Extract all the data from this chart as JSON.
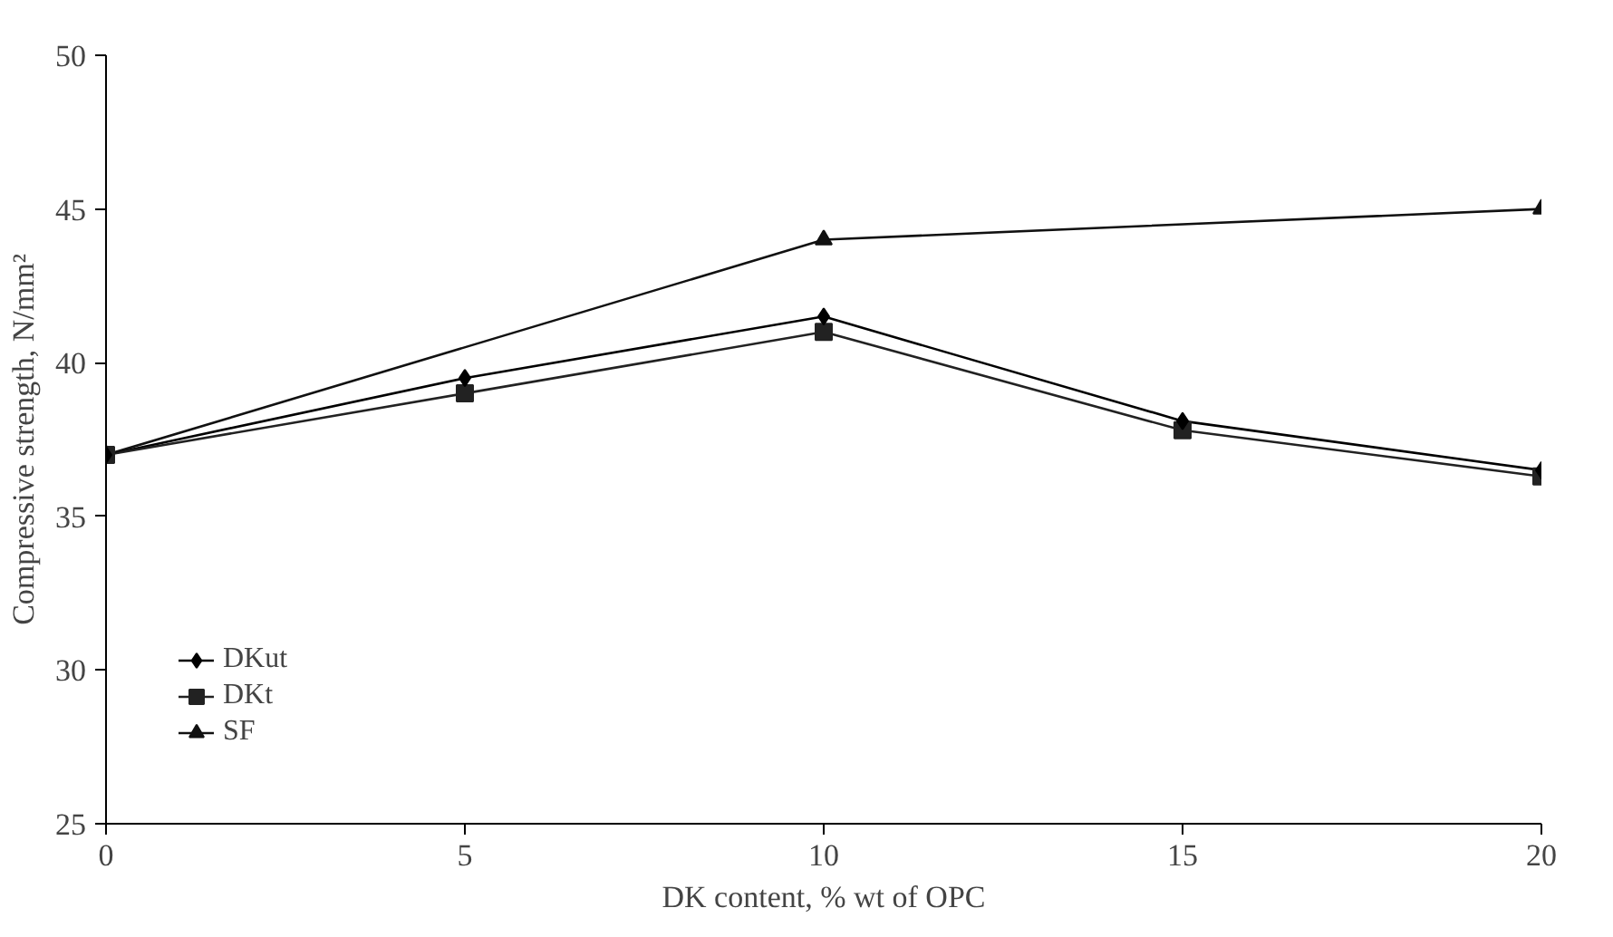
{
  "chart_data": {
    "type": "line",
    "xlabel": "DK content, % wt of OPC",
    "ylabel": "Compressive strength, N/mm²",
    "x": [
      0,
      5,
      10,
      15,
      20
    ],
    "series": [
      {
        "name": "DKut",
        "color": "#000000",
        "marker": "diamond",
        "values": [
          37,
          39.5,
          41.5,
          38.1,
          36.5
        ]
      },
      {
        "name": "DKt",
        "color": "#222222",
        "marker": "square",
        "values": [
          37,
          39,
          41,
          37.8,
          36.3
        ]
      },
      {
        "name": "SF",
        "color": "#111111",
        "marker": "triangle",
        "x": [
          0,
          10,
          20
        ],
        "values": [
          37,
          44,
          45
        ]
      }
    ],
    "xlim": [
      0,
      20
    ],
    "xticks": [
      0,
      5,
      10,
      15,
      20
    ],
    "ylim": [
      25,
      50
    ],
    "yticks": [
      25,
      30,
      35,
      40,
      45,
      50
    ],
    "grid": false,
    "legend": "bottom left",
    "line_style": "solid"
  }
}
